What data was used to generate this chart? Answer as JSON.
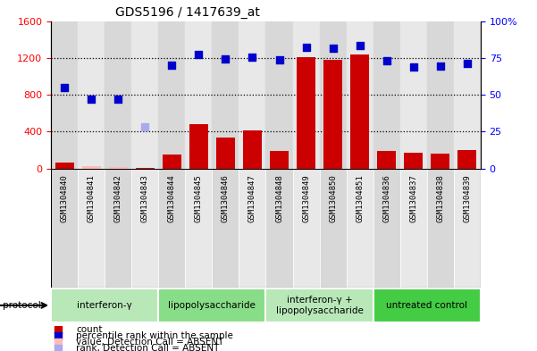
{
  "title": "GDS5196 / 1417639_at",
  "samples": [
    "GSM1304840",
    "GSM1304841",
    "GSM1304842",
    "GSM1304843",
    "GSM1304844",
    "GSM1304845",
    "GSM1304846",
    "GSM1304847",
    "GSM1304848",
    "GSM1304849",
    "GSM1304850",
    "GSM1304851",
    "GSM1304836",
    "GSM1304837",
    "GSM1304838",
    "GSM1304839"
  ],
  "count_values": [
    60,
    30,
    20,
    10,
    150,
    480,
    340,
    410,
    195,
    1210,
    1175,
    1235,
    195,
    175,
    160,
    200
  ],
  "count_absent": [
    false,
    true,
    true,
    false,
    false,
    false,
    false,
    false,
    false,
    false,
    false,
    false,
    false,
    false,
    false,
    false
  ],
  "rank_values": [
    880,
    750,
    750,
    455,
    1120,
    1240,
    1185,
    1205,
    1175,
    1315,
    1305,
    1330,
    1165,
    1100,
    1110,
    1145
  ],
  "rank_absent": [
    false,
    false,
    false,
    true,
    false,
    false,
    false,
    false,
    false,
    false,
    false,
    false,
    false,
    false,
    false,
    false
  ],
  "groups": [
    {
      "label": "interferon-γ",
      "start": 0,
      "end": 4
    },
    {
      "label": "lipopolysaccharide",
      "start": 4,
      "end": 8
    },
    {
      "label": "interferon-γ +\nlipopolysaccharide",
      "start": 8,
      "end": 12
    },
    {
      "label": "untreated control",
      "start": 12,
      "end": 16
    }
  ],
  "group_colors": [
    "#b8e8b8",
    "#88dd88",
    "#b8e8b8",
    "#44cc44"
  ],
  "ylim_left": [
    0,
    1600
  ],
  "ylim_right": [
    0,
    100
  ],
  "yticks_left": [
    0,
    400,
    800,
    1200,
    1600
  ],
  "yticks_right": [
    0,
    25,
    50,
    75,
    100
  ],
  "bar_color_present": "#cc0000",
  "bar_color_absent": "#ffbbbb",
  "scatter_color_present": "#0000cc",
  "scatter_color_absent": "#aaaaee",
  "col_bg_even": "#d8d8d8",
  "col_bg_odd": "#e8e8e8",
  "plot_bg": "white"
}
